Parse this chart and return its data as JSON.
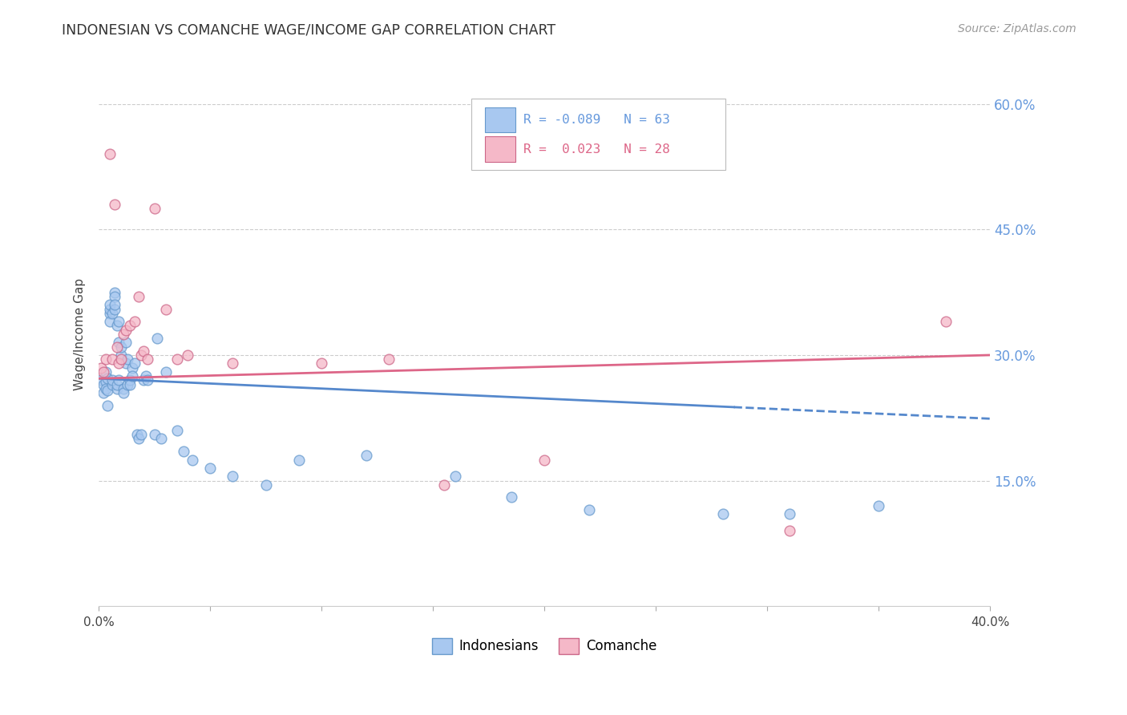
{
  "title": "INDONESIAN VS COMANCHE WAGE/INCOME GAP CORRELATION CHART",
  "source": "Source: ZipAtlas.com",
  "ylabel": "Wage/Income Gap",
  "yticks": [
    0.15,
    0.3,
    0.45,
    0.6
  ],
  "ytick_labels": [
    "15.0%",
    "30.0%",
    "45.0%",
    "60.0%"
  ],
  "xlim": [
    0.0,
    0.4
  ],
  "ylim": [
    0.0,
    0.65
  ],
  "color_indonesian_fill": "#A8C8F0",
  "color_indonesian_edge": "#6699CC",
  "color_comanche_fill": "#F5B8C8",
  "color_comanche_edge": "#CC6688",
  "color_line_indonesian": "#5588CC",
  "color_line_comanche": "#DD6688",
  "color_ytick_label": "#6699DD",
  "background_color": "#FFFFFF",
  "indonesian_x": [
    0.001,
    0.002,
    0.002,
    0.003,
    0.003,
    0.003,
    0.004,
    0.004,
    0.004,
    0.005,
    0.005,
    0.005,
    0.005,
    0.006,
    0.006,
    0.006,
    0.007,
    0.007,
    0.007,
    0.007,
    0.008,
    0.008,
    0.008,
    0.009,
    0.009,
    0.009,
    0.01,
    0.01,
    0.011,
    0.011,
    0.012,
    0.012,
    0.013,
    0.013,
    0.014,
    0.014,
    0.015,
    0.015,
    0.016,
    0.017,
    0.018,
    0.019,
    0.02,
    0.021,
    0.022,
    0.025,
    0.026,
    0.028,
    0.03,
    0.035,
    0.038,
    0.042,
    0.05,
    0.06,
    0.075,
    0.09,
    0.12,
    0.16,
    0.185,
    0.22,
    0.28,
    0.31,
    0.35
  ],
  "indonesian_y": [
    0.27,
    0.265,
    0.255,
    0.28,
    0.268,
    0.26,
    0.272,
    0.258,
    0.24,
    0.35,
    0.355,
    0.36,
    0.34,
    0.35,
    0.265,
    0.27,
    0.375,
    0.37,
    0.355,
    0.36,
    0.26,
    0.265,
    0.335,
    0.34,
    0.27,
    0.315,
    0.3,
    0.31,
    0.26,
    0.255,
    0.29,
    0.315,
    0.265,
    0.295,
    0.27,
    0.265,
    0.285,
    0.275,
    0.29,
    0.205,
    0.2,
    0.205,
    0.27,
    0.275,
    0.27,
    0.205,
    0.32,
    0.2,
    0.28,
    0.21,
    0.185,
    0.175,
    0.165,
    0.155,
    0.145,
    0.175,
    0.18,
    0.155,
    0.13,
    0.115,
    0.11,
    0.11,
    0.12
  ],
  "comanche_x": [
    0.001,
    0.002,
    0.003,
    0.005,
    0.006,
    0.007,
    0.008,
    0.009,
    0.01,
    0.011,
    0.012,
    0.014,
    0.016,
    0.018,
    0.019,
    0.02,
    0.022,
    0.025,
    0.03,
    0.035,
    0.04,
    0.06,
    0.1,
    0.13,
    0.155,
    0.2,
    0.31,
    0.38
  ],
  "comanche_y": [
    0.285,
    0.28,
    0.295,
    0.54,
    0.295,
    0.48,
    0.31,
    0.29,
    0.295,
    0.325,
    0.33,
    0.335,
    0.34,
    0.37,
    0.3,
    0.305,
    0.295,
    0.475,
    0.355,
    0.295,
    0.3,
    0.29,
    0.29,
    0.295,
    0.145,
    0.175,
    0.09,
    0.34
  ],
  "trend_indonesian_start_y": 0.272,
  "trend_indonesian_end_y": 0.224,
  "trend_comanche_start_y": 0.272,
  "trend_comanche_end_y": 0.3,
  "trend_split_x": 0.285
}
